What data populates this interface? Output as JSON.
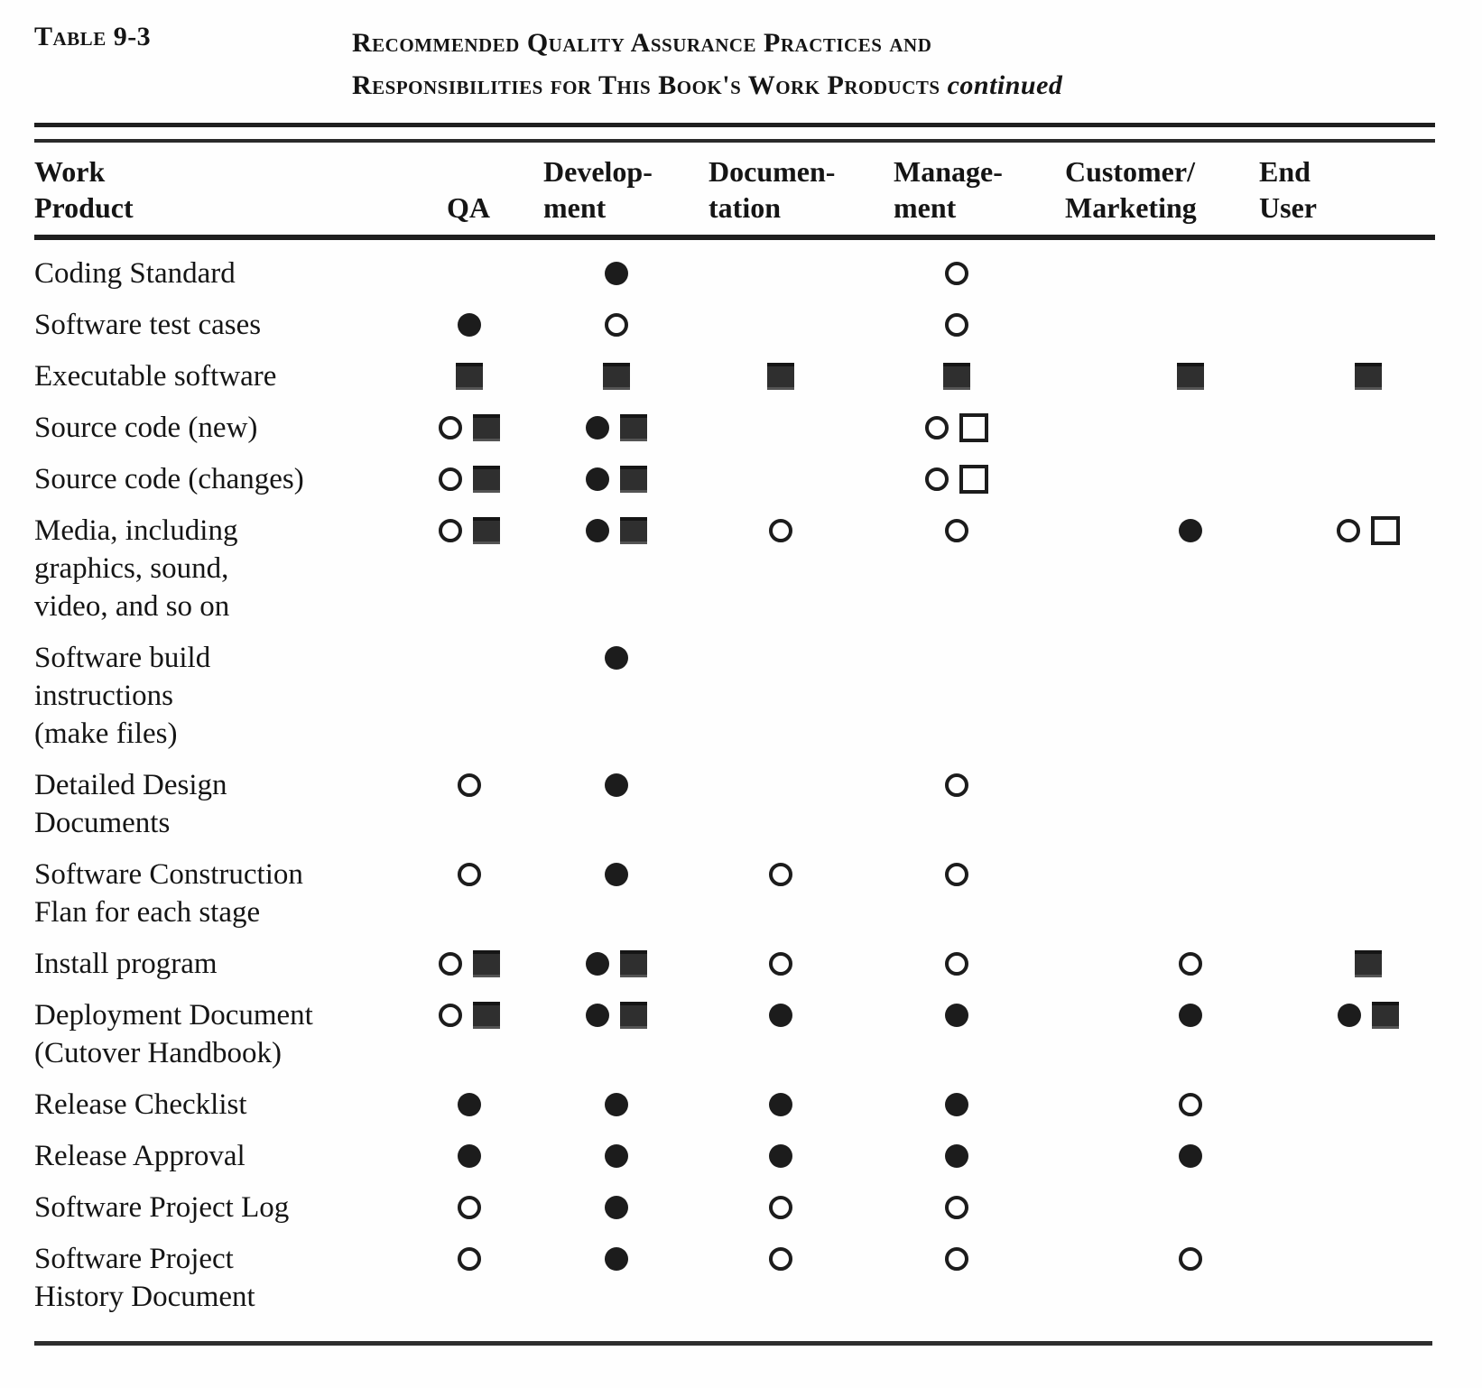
{
  "title": {
    "table_label": "Table 9-3",
    "line1": "Recommended Quality Assurance Practices and",
    "line2": "Responsibilities for This Book's Work Products",
    "continued": "continued"
  },
  "columns": [
    {
      "key": "work-product",
      "line1": "Work",
      "line2": "Product"
    },
    {
      "key": "qa",
      "line1": "",
      "line2": "QA"
    },
    {
      "key": "development",
      "line1": "Develop-",
      "line2": "ment"
    },
    {
      "key": "documentation",
      "line1": "Documen-",
      "line2": "tation"
    },
    {
      "key": "management",
      "line1": "Manage-",
      "line2": "ment"
    },
    {
      "key": "customer-marketing",
      "line1": "Customer/",
      "line2": "Marketing"
    },
    {
      "key": "end-user",
      "line1": "End",
      "line2": "User"
    }
  ],
  "symbol_colors": {
    "ink": "#1c1c1c",
    "square_fill": "#2f2f2f",
    "background": "#fefefe"
  },
  "rows": [
    {
      "label": [
        "Coding Standard"
      ],
      "cells": [
        [],
        [
          "filled-circle"
        ],
        [],
        [
          "open-circle"
        ],
        [],
        []
      ]
    },
    {
      "label": [
        "Software test cases"
      ],
      "cells": [
        [
          "filled-circle"
        ],
        [
          "open-circle"
        ],
        [],
        [
          "open-circle"
        ],
        [],
        []
      ]
    },
    {
      "label": [
        "Executable software"
      ],
      "cells": [
        [
          "filled-square"
        ],
        [
          "filled-square"
        ],
        [
          "filled-square"
        ],
        [
          "filled-square"
        ],
        [
          "filled-square"
        ],
        [
          "filled-square"
        ]
      ]
    },
    {
      "label": [
        "Source code (new)"
      ],
      "cells": [
        [
          "open-circle",
          "filled-square"
        ],
        [
          "filled-circle",
          "filled-square"
        ],
        [],
        [
          "open-circle",
          "open-square"
        ],
        [],
        []
      ]
    },
    {
      "label": [
        "Source code (changes)"
      ],
      "cells": [
        [
          "open-circle",
          "filled-square"
        ],
        [
          "filled-circle",
          "filled-square"
        ],
        [],
        [
          "open-circle",
          "open-square"
        ],
        [],
        []
      ]
    },
    {
      "label": [
        "Media, including",
        "graphics, sound,",
        "video, and so on"
      ],
      "cells": [
        [
          "open-circle",
          "filled-square"
        ],
        [
          "filled-circle",
          "filled-square"
        ],
        [
          "open-circle"
        ],
        [
          "open-circle"
        ],
        [
          "filled-circle"
        ],
        [
          "open-circle",
          "open-square"
        ]
      ]
    },
    {
      "label": [
        "Software  build",
        "instructions",
        "(make files)"
      ],
      "cells": [
        [],
        [
          "filled-circle"
        ],
        [],
        [],
        [],
        []
      ]
    },
    {
      "label": [
        "Detailed Design",
        "Documents"
      ],
      "cells": [
        [
          "open-circle"
        ],
        [
          "filled-circle"
        ],
        [],
        [
          "open-circle"
        ],
        [],
        []
      ]
    },
    {
      "label": [
        "Software  Construction",
        "Flan for each stage"
      ],
      "cells": [
        [
          "open-circle"
        ],
        [
          "filled-circle"
        ],
        [
          "open-circle"
        ],
        [
          "open-circle"
        ],
        [],
        []
      ]
    },
    {
      "label": [
        "Install program"
      ],
      "cells": [
        [
          "open-circle",
          "filled-square"
        ],
        [
          "filled-circle",
          "filled-square"
        ],
        [
          "open-circle"
        ],
        [
          "open-circle"
        ],
        [
          "open-circle"
        ],
        [
          "filled-square"
        ]
      ]
    },
    {
      "label": [
        "Deployment Document",
        "(Cutover  Handbook)"
      ],
      "cells": [
        [
          "open-circle",
          "filled-square"
        ],
        [
          "filled-circle",
          "filled-square"
        ],
        [
          "filled-circle"
        ],
        [
          "filled-circle"
        ],
        [
          "filled-circle"
        ],
        [
          "filled-circle",
          "filled-square"
        ]
      ]
    },
    {
      "label": [
        "Release  Checklist"
      ],
      "cells": [
        [
          "filled-circle"
        ],
        [
          "filled-circle"
        ],
        [
          "filled-circle"
        ],
        [
          "filled-circle"
        ],
        [
          "open-circle"
        ],
        []
      ]
    },
    {
      "label": [
        "Release  Approval"
      ],
      "cells": [
        [
          "filled-circle"
        ],
        [
          "filled-circle"
        ],
        [
          "filled-circle"
        ],
        [
          "filled-circle"
        ],
        [
          "filled-circle"
        ],
        []
      ]
    },
    {
      "label": [
        "Software Project Log"
      ],
      "cells": [
        [
          "open-circle"
        ],
        [
          "filled-circle"
        ],
        [
          "open-circle"
        ],
        [
          "open-circle"
        ],
        [],
        []
      ]
    },
    {
      "label": [
        "Software Project",
        "History Document"
      ],
      "cells": [
        [
          "open-circle"
        ],
        [
          "filled-circle"
        ],
        [
          "open-circle"
        ],
        [
          "open-circle"
        ],
        [
          "open-circle"
        ],
        []
      ]
    }
  ]
}
